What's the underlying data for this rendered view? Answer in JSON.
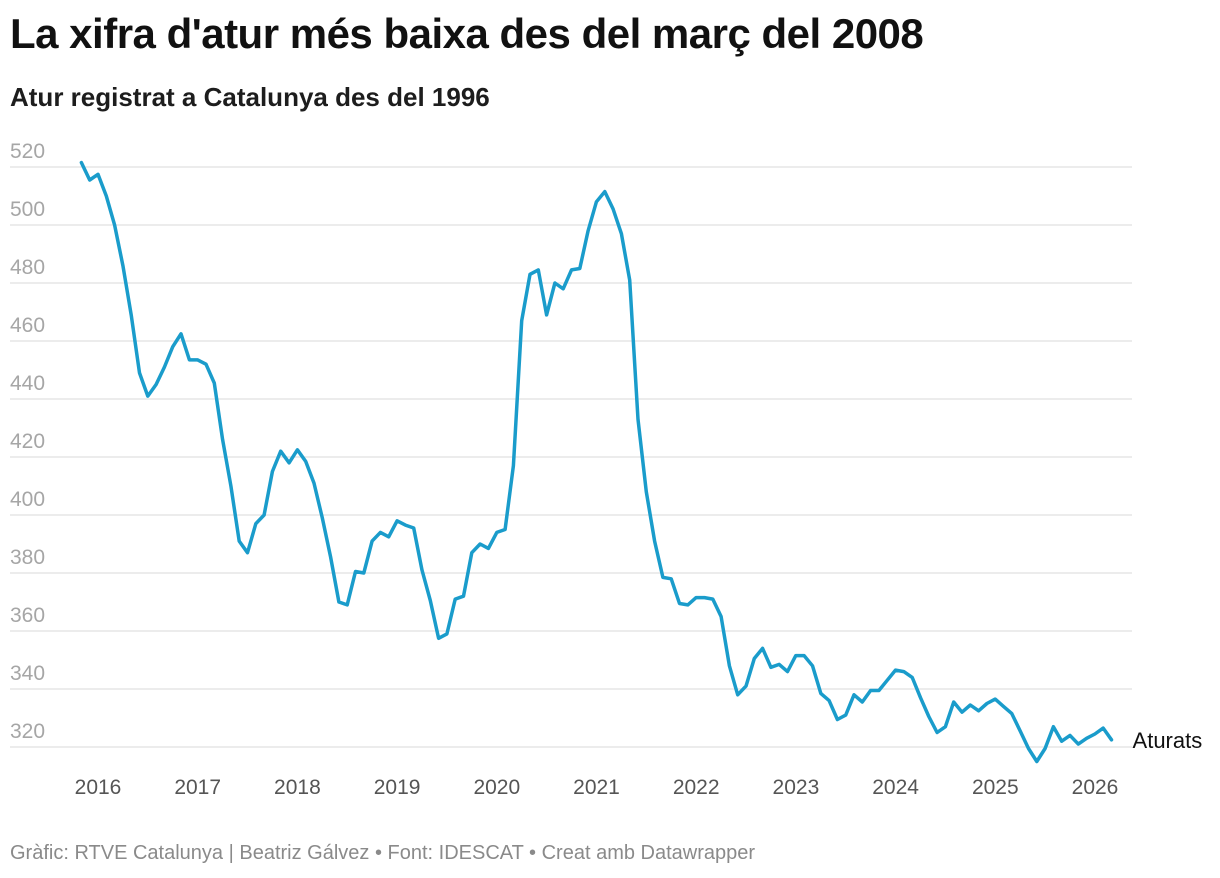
{
  "header": {
    "title": "La xifra d'atur més baixa des del març del 2008",
    "subtitle": "Atur registrat a Catalunya des del 1996"
  },
  "footer": {
    "text": "Gràfic: RTVE Catalunya | Beatriz Gálvez • Font: IDESCAT • Creat amb Datawrapper"
  },
  "colors": {
    "line": "#1a9ccb",
    "grid": "#e1e1e1",
    "tick": "#a6a6a6",
    "xtick": "#555555",
    "label": "#111111"
  },
  "chart_data": {
    "type": "line",
    "title": "La xifra d'atur més baixa des del març del 2008",
    "subtitle": "Atur registrat a Catalunya des del 1996",
    "xlabel": "",
    "ylabel": "",
    "ylim": [
      313,
      522
    ],
    "xlim": [
      2015.6,
      2026.3
    ],
    "yticks": [
      320,
      340,
      360,
      380,
      400,
      420,
      440,
      460,
      480,
      500,
      520
    ],
    "xticks": [
      2016,
      2017,
      2018,
      2019,
      2020,
      2021,
      2022,
      2023,
      2024,
      2025,
      2026
    ],
    "grid": true,
    "series": [
      {
        "name": "Aturats",
        "label": "Aturats",
        "start_year": 2015.833,
        "step": 0.08333,
        "values": [
          521.5,
          515.5,
          517.5,
          510,
          500,
          486,
          469,
          449,
          441,
          445,
          451,
          458,
          462.5,
          453.5,
          453.5,
          452,
          445.5,
          426,
          410,
          391,
          387,
          397,
          400,
          415,
          422,
          418,
          422.5,
          418.5,
          411,
          399,
          385.5,
          370,
          369,
          380.5,
          380,
          391,
          394,
          392.5,
          398,
          396.5,
          395.5,
          381,
          370.5,
          357.5,
          359,
          371,
          372,
          387,
          390,
          388.5,
          394,
          395,
          417,
          467,
          483,
          484.5,
          469,
          480,
          478,
          484.5,
          485,
          498,
          508,
          511.5,
          505.5,
          497,
          481,
          433,
          408,
          391,
          378.5,
          378,
          369.5,
          369,
          371.5,
          371.5,
          371,
          365,
          348,
          338,
          341,
          350.5,
          354,
          347.5,
          348.5,
          346,
          351.5,
          351.5,
          348,
          338.5,
          336,
          329.5,
          331,
          338,
          335.5,
          339.5,
          339.5,
          343,
          346.5,
          346,
          344,
          337,
          330.5,
          325,
          327,
          335.5,
          332,
          334.5,
          332.5,
          335,
          336.5,
          334,
          331.5,
          325.5,
          319.5,
          315,
          319.5,
          327,
          322,
          324,
          321,
          323,
          324.5,
          326.5,
          322.5
        ]
      }
    ]
  }
}
